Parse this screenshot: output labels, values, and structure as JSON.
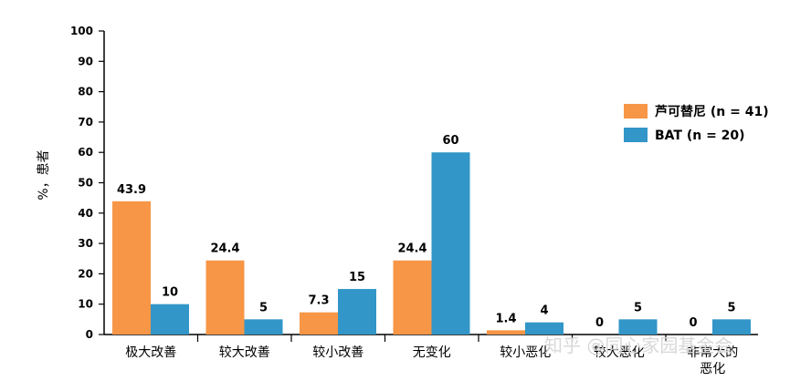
{
  "chart_data": {
    "type": "bar",
    "categories": [
      "极大改善",
      "较大改善",
      "较小改善",
      "无变化",
      "较小恶化",
      "较大恶化",
      "非常大的恶化"
    ],
    "series": [
      {
        "name": "芦可替尼 (n = 41)",
        "color": "#F79646",
        "values": [
          43.9,
          24.4,
          7.3,
          24.4,
          1.4,
          0,
          0
        ]
      },
      {
        "name": "BAT (n = 20)",
        "color": "#3296C8",
        "values": [
          10,
          5,
          15,
          60,
          4,
          5,
          5
        ]
      }
    ],
    "ylabel": "%，患者",
    "ylim": [
      0,
      100
    ],
    "yticks": [
      0,
      10,
      20,
      30,
      40,
      50,
      60,
      70,
      80,
      90,
      100
    ],
    "legend_position": "right"
  },
  "watermark": "知乎 @同心家园基金会"
}
